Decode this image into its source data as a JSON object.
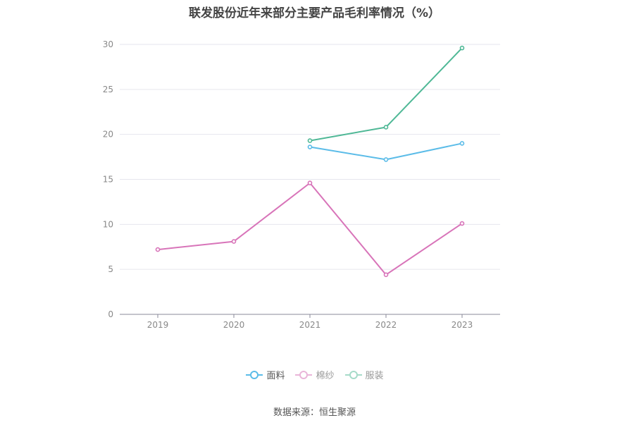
{
  "chart_data": {
    "type": "line",
    "title": "联发股份近年来部分主要产品毛利率情况（%）",
    "categories": [
      "2019",
      "2020",
      "2021",
      "2022",
      "2023"
    ],
    "ylim": [
      0,
      30
    ],
    "yticks": [
      0,
      5,
      10,
      15,
      20,
      25,
      30
    ],
    "grid": true,
    "legend_position": "bottom",
    "series": [
      {
        "name": "面料",
        "color": "#5bbce8",
        "values": [
          null,
          null,
          18.6,
          17.2,
          19.0
        ],
        "active": true
      },
      {
        "name": "棉纱",
        "color": "#d874b9",
        "values": [
          7.2,
          8.1,
          14.6,
          4.4,
          10.1
        ],
        "active": false
      },
      {
        "name": "服装",
        "color": "#4fb896",
        "values": [
          null,
          null,
          19.3,
          20.8,
          29.6
        ],
        "active": false
      }
    ]
  },
  "source": "数据来源：恒生聚源"
}
